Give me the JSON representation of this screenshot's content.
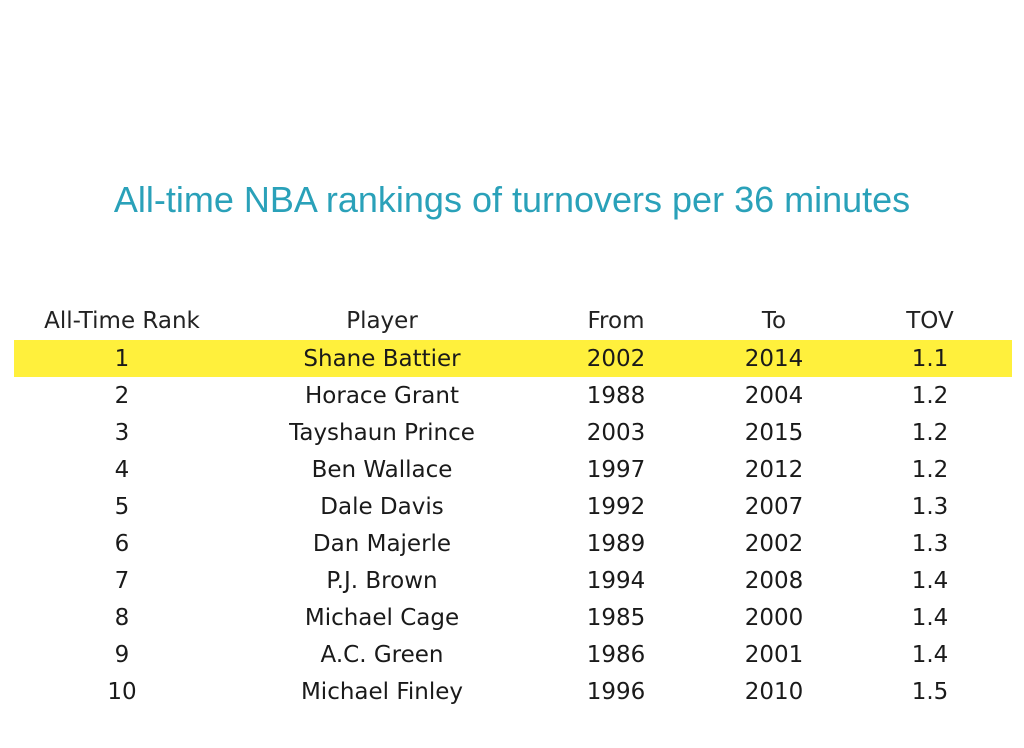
{
  "chart_data": {
    "type": "table",
    "title": "All-time NBA rankings of turnovers per 36 minutes",
    "columns": [
      "All-Time Rank",
      "Player",
      "From",
      "To",
      "TOV"
    ],
    "rows": [
      [
        "1",
        "Shane Battier",
        "2002",
        "2014",
        "1.1"
      ],
      [
        "2",
        "Horace Grant",
        "1988",
        "2004",
        "1.2"
      ],
      [
        "3",
        "Tayshaun Prince",
        "2003",
        "2015",
        "1.2"
      ],
      [
        "4",
        "Ben Wallace",
        "1997",
        "2012",
        "1.2"
      ],
      [
        "5",
        "Dale Davis",
        "1992",
        "2007",
        "1.3"
      ],
      [
        "6",
        "Dan Majerle",
        "1989",
        "2002",
        "1.3"
      ],
      [
        "7",
        "P.J. Brown",
        "1994",
        "2008",
        "1.4"
      ],
      [
        "8",
        "Michael Cage",
        "1985",
        "2000",
        "1.4"
      ],
      [
        "9",
        "A.C. Green",
        "1986",
        "2001",
        "1.4"
      ],
      [
        "10",
        "Michael Finley",
        "1996",
        "2010",
        "1.5"
      ]
    ],
    "highlighted_row_index": 0,
    "highlight_color": "#fff03c",
    "title_color": "#2aa1b9"
  }
}
